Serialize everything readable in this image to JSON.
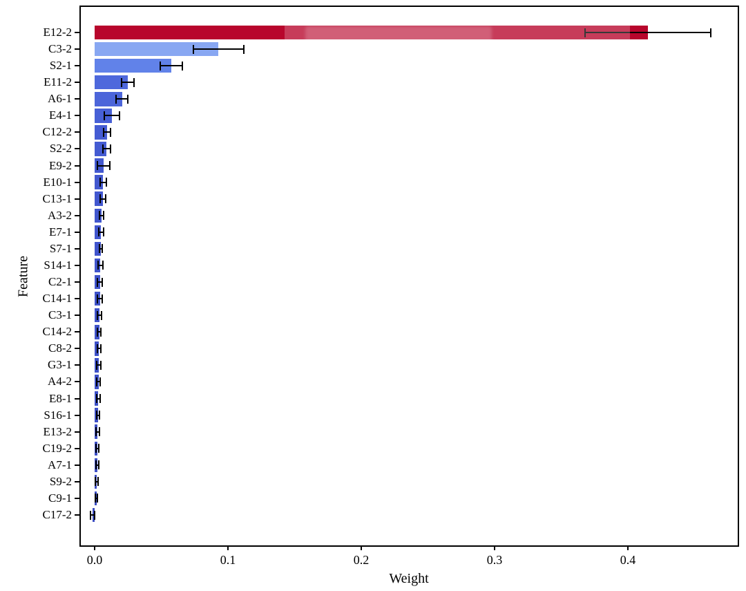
{
  "chart_data": {
    "type": "bar",
    "orientation": "horizontal",
    "title": "",
    "xlabel": "Weight",
    "ylabel": "Feature",
    "xlim": [
      -0.0114,
      0.4834
    ],
    "xticks": [
      0.0,
      0.1,
      0.2,
      0.3,
      0.4
    ],
    "xtick_labels": [
      "0.0",
      "0.1",
      "0.2",
      "0.3",
      "0.4"
    ],
    "grid": false,
    "legend": "none",
    "error_bars": true,
    "colormap": "coolwarm",
    "categories": [
      "E12-2",
      "C3-2",
      "S2-1",
      "E11-2",
      "A6-1",
      "E4-1",
      "C12-2",
      "S2-2",
      "E9-2",
      "E10-1",
      "C13-1",
      "A3-2",
      "E7-1",
      "S7-1",
      "S14-1",
      "C2-1",
      "C14-1",
      "C3-1",
      "C14-2",
      "C8-2",
      "G3-1",
      "A4-2",
      "E8-1",
      "S16-1",
      "E13-2",
      "C19-2",
      "A7-1",
      "S9-2",
      "C9-1",
      "C17-2"
    ],
    "values": [
      0.415,
      0.093,
      0.0575,
      0.0248,
      0.0205,
      0.0131,
      0.0094,
      0.0089,
      0.0068,
      0.0064,
      0.006,
      0.0051,
      0.0049,
      0.0046,
      0.0043,
      0.0041,
      0.0039,
      0.0037,
      0.0035,
      0.0033,
      0.0031,
      0.0029,
      0.0027,
      0.0025,
      0.0023,
      0.0021,
      0.0019,
      0.0017,
      0.0013,
      -0.0015
    ],
    "errors": [
      0.047,
      0.019,
      0.0085,
      0.0048,
      0.0045,
      0.0058,
      0.0026,
      0.0029,
      0.0047,
      0.0022,
      0.0021,
      0.0016,
      0.0018,
      0.0012,
      0.0018,
      0.0018,
      0.0018,
      0.0015,
      0.0014,
      0.0013,
      0.0015,
      0.0014,
      0.0012,
      0.0012,
      0.0014,
      0.001,
      0.001,
      0.001,
      0.0008,
      0.0015
    ],
    "colors": [
      "#B8062C",
      "#88A7F2",
      "#6182E9",
      "#4E68DC",
      "#4C65DA",
      "#4760D6",
      "#455CD3",
      "#445BD2",
      "#4359D0",
      "#4358CF",
      "#4257CF",
      "#4156CD",
      "#4155CD",
      "#4054CC",
      "#4054CB",
      "#3F53CB",
      "#3F53CA",
      "#3F52CA",
      "#3E52C9",
      "#3E51C9",
      "#3E51C8",
      "#3D50C8",
      "#3D50C7",
      "#3D4FC7",
      "#3C4FC6",
      "#3C4EC5",
      "#3C4EC5",
      "#3C4DC4",
      "#3B4DC3",
      "#3B4CC2"
    ],
    "error_bar_color": "#000000",
    "axis_color": "#000000",
    "background_color": "#ffffff"
  }
}
